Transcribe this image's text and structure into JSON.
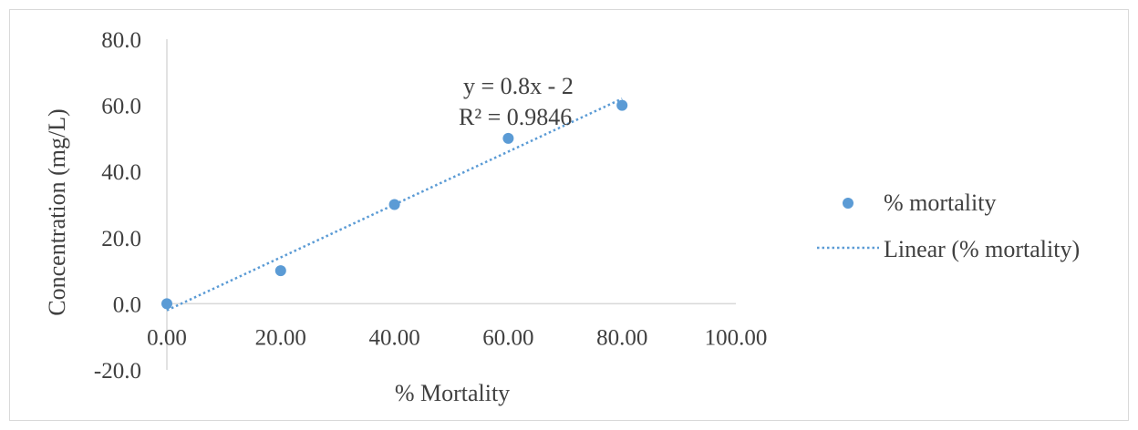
{
  "chart_data": {
    "type": "scatter",
    "series": [
      {
        "name": "% mortality",
        "color": "#5b9bd5",
        "points": [
          {
            "x": 0,
            "y": 0
          },
          {
            "x": 20,
            "y": 10
          },
          {
            "x": 40,
            "y": 30
          },
          {
            "x": 60,
            "y": 50
          },
          {
            "x": 80,
            "y": 60
          }
        ]
      }
    ],
    "trendline": {
      "name": "Linear (% mortality)",
      "type": "linear",
      "slope": 0.8,
      "intercept": -2,
      "x_range": [
        0,
        80
      ],
      "equation_label": "y = 0.8x  - 2",
      "r2_label": "R² = 0.9846",
      "color": "#5b9bd5",
      "style": "dotted"
    },
    "xlabel": "% Mortality",
    "ylabel": "Concentration  (mg/L)",
    "xlim": [
      0,
      100
    ],
    "ylim": [
      -20,
      80
    ],
    "x_ticks": [
      "0.00",
      "20.00",
      "40.00",
      "60.00",
      "80.00",
      "100.00"
    ],
    "y_ticks": [
      "80.0",
      "60.0",
      "40.0",
      "20.0",
      "0.0",
      "-20.0"
    ],
    "grid": false,
    "legend_position": "right"
  }
}
